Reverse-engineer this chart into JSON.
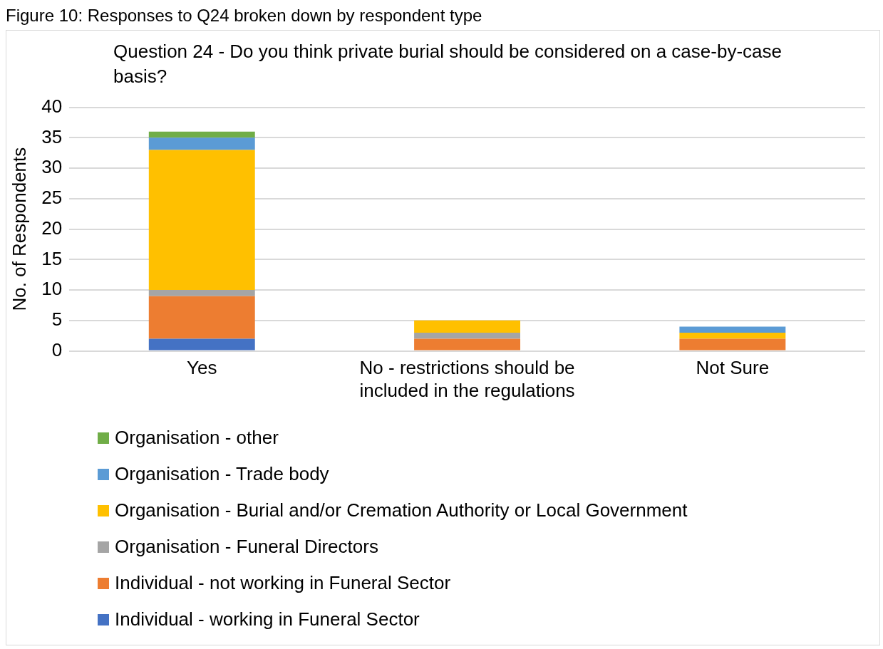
{
  "chart_data": {
    "type": "bar",
    "title": "Question 24 - Do you think private burial should be considered on a case-by-case basis?",
    "annotations": [
      "Figure 10: Responses to Q24 broken down by respondent type"
    ],
    "ylabel": "No. of Respondents",
    "categories": [
      "Yes",
      "No - restrictions should be included in the regulations",
      "Not Sure"
    ],
    "stacked": true,
    "series": [
      {
        "name": "Individual - working in Funeral Sector",
        "color": "#4472c4",
        "values": [
          2,
          0,
          0
        ]
      },
      {
        "name": "Individual - not working in Funeral Sector",
        "color": "#ed7d31",
        "values": [
          7,
          2,
          2
        ]
      },
      {
        "name": "Organisation - Funeral Directors",
        "color": "#a5a5a5",
        "values": [
          1,
          1,
          0
        ]
      },
      {
        "name": "Organisation - Burial and/or Cremation Authority or Local Government",
        "color": "#ffc000",
        "values": [
          23,
          2,
          1
        ]
      },
      {
        "name": "Organisation - Trade body",
        "color": "#5b9bd5",
        "values": [
          2,
          0,
          1
        ]
      },
      {
        "name": "Organisation - other",
        "color": "#70ad47",
        "values": [
          1,
          0,
          0
        ]
      }
    ],
    "ylim": [
      0,
      40
    ],
    "yticks": [
      0,
      5,
      10,
      15,
      20,
      25,
      30,
      35,
      40
    ],
    "grid": "y",
    "legend": "bottom"
  }
}
